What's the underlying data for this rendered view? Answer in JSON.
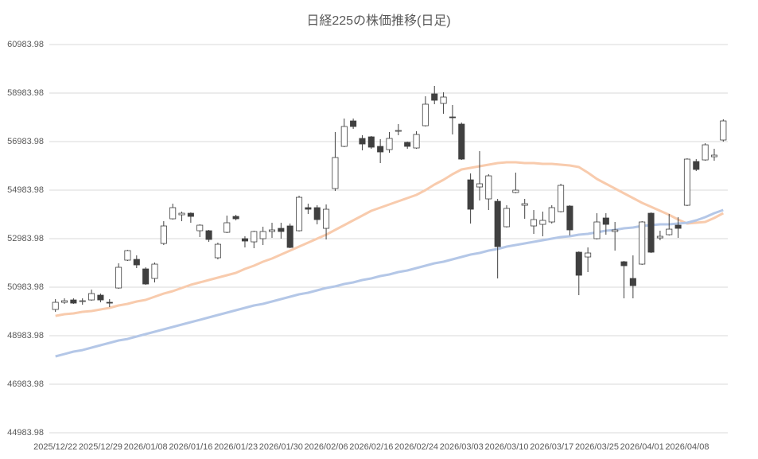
{
  "chart_data": {
    "type": "candlestick",
    "title": "日経225の株価推移(日足)",
    "categories": [
      "2025/12/22",
      null,
      null,
      null,
      null,
      "2025/12/29",
      null,
      null,
      null,
      null,
      "2026/01/08",
      null,
      null,
      null,
      null,
      "2026/01/16",
      null,
      null,
      null,
      null,
      "2026/01/23",
      null,
      null,
      null,
      null,
      "2026/01/30",
      null,
      null,
      null,
      null,
      "2026/02/06",
      null,
      null,
      null,
      null,
      "2026/02/16",
      null,
      null,
      null,
      null,
      "2026/02/24",
      null,
      null,
      null,
      null,
      "2026/03/03",
      null,
      null,
      null,
      null,
      "2026/03/10",
      null,
      null,
      null,
      null,
      "2026/03/17",
      null,
      null,
      null,
      null,
      "2026/03/25",
      null,
      null,
      null,
      null,
      "2026/04/01",
      null,
      null,
      null,
      null,
      "2026/04/08",
      null,
      null,
      null,
      null
    ],
    "open": [
      50065,
      50360,
      50458,
      50393,
      50458,
      50655,
      50360,
      50950,
      52098,
      52130,
      51737,
      51344,
      52786,
      53803,
      53967,
      54032,
      53311,
      53311,
      52196,
      53245,
      53901,
      52983,
      52852,
      52983,
      53278,
      53409,
      53508,
      53311,
      54262,
      54262,
      53409,
      55049,
      56787,
      57836,
      57115,
      57180,
      56787,
      56655,
      57410,
      56951,
      56721,
      57639,
      58951,
      58557,
      58000,
      57705,
      55409,
      55114,
      54623,
      54524,
      53475,
      54885,
      54360,
      53508,
      53573,
      53672,
      54098,
      54327,
      52426,
      52229,
      52983,
      53836,
      53278,
      52032,
      51344,
      51934,
      54032,
      53016,
      53147,
      53540,
      54360,
      56164,
      56229,
      56360,
      57049
    ],
    "high": [
      50491,
      50524,
      50524,
      50524,
      50884,
      50720,
      50491,
      51967,
      52524,
      52294,
      51803,
      51999,
      53704,
      54426,
      54098,
      54065,
      53573,
      53344,
      52819,
      53934,
      53967,
      53081,
      53311,
      53475,
      53639,
      53639,
      53606,
      54754,
      54426,
      54360,
      54393,
      57377,
      57934,
      57934,
      57246,
      57213,
      57082,
      57377,
      57705,
      56983,
      57410,
      58852,
      59279,
      59016,
      58492,
      57770,
      55672,
      56590,
      55639,
      54623,
      54360,
      55705,
      54623,
      54163,
      54098,
      54360,
      55246,
      54360,
      52458,
      52622,
      54032,
      54032,
      53672,
      52065,
      52294,
      53704,
      54065,
      53311,
      53999,
      53868,
      56295,
      56262,
      56918,
      56688,
      57902
    ],
    "low": [
      49966,
      50294,
      50294,
      50261,
      50425,
      50360,
      50163,
      50917,
      52065,
      51770,
      51081,
      51180,
      52721,
      53770,
      53704,
      53639,
      53049,
      52852,
      52130,
      53213,
      53737,
      52622,
      52590,
      52721,
      53016,
      52983,
      52590,
      53278,
      53999,
      53573,
      52950,
      54950,
      56754,
      57508,
      56623,
      56688,
      56098,
      56524,
      57246,
      56688,
      56688,
      57606,
      58525,
      58131,
      57278,
      56229,
      53606,
      54557,
      54163,
      51344,
      53442,
      54852,
      53803,
      53180,
      53081,
      53606,
      54065,
      53114,
      50655,
      51606,
      52950,
      53147,
      52491,
      50524,
      50524,
      51901,
      52393,
      52917,
      53114,
      53016,
      54327,
      55770,
      56196,
      56196,
      56983
    ],
    "close": [
      50360,
      50425,
      50327,
      50425,
      50720,
      50458,
      50327,
      51803,
      52491,
      51901,
      51114,
      51934,
      53508,
      54262,
      54032,
      53901,
      53540,
      52950,
      52753,
      53639,
      53803,
      52885,
      53278,
      53278,
      53344,
      53278,
      52622,
      54688,
      54196,
      53770,
      54196,
      56328,
      57606,
      57606,
      56885,
      56754,
      56557,
      57115,
      57442,
      56787,
      57278,
      58525,
      58688,
      58820,
      57967,
      56262,
      54196,
      55246,
      55573,
      52655,
      54229,
      54983,
      54426,
      53770,
      53737,
      54262,
      55180,
      53344,
      51475,
      52393,
      53672,
      53573,
      53344,
      51868,
      51048,
      53672,
      52426,
      53081,
      53376,
      53409,
      56262,
      55836,
      56852,
      56426,
      57836
    ],
    "up_color": "#ffffff",
    "down_color": "#404040",
    "edge_color": "#404040",
    "series": [
      {
        "color": "#f8cbad",
        "values": [
          49802,
          49868,
          49901,
          49966,
          49999,
          50065,
          50130,
          50229,
          50294,
          50393,
          50458,
          50589,
          50720,
          50819,
          50950,
          51081,
          51180,
          51278,
          51376,
          51475,
          51573,
          51737,
          51868,
          52032,
          52163,
          52327,
          52491,
          52655,
          52819,
          52983,
          53147,
          53344,
          53540,
          53737,
          53934,
          54131,
          54262,
          54393,
          54524,
          54655,
          54786,
          54983,
          55213,
          55409,
          55639,
          55836,
          55901,
          55967,
          56032,
          56098,
          56131,
          56131,
          56098,
          56098,
          56065,
          56065,
          56032,
          56000,
          55934,
          55705,
          55442,
          55246,
          55049,
          54852,
          54655,
          54459,
          54295,
          54131,
          53967,
          53770,
          53606,
          53639,
          53672,
          53836,
          54032
        ]
      },
      {
        "color": "#b4c7e7",
        "values": [
          48130,
          48228,
          48327,
          48392,
          48491,
          48589,
          48688,
          48786,
          48851,
          48950,
          49048,
          49147,
          49245,
          49343,
          49442,
          49540,
          49638,
          49737,
          49835,
          49934,
          50032,
          50130,
          50229,
          50294,
          50393,
          50491,
          50589,
          50688,
          50753,
          50852,
          50950,
          51016,
          51114,
          51180,
          51278,
          51344,
          51442,
          51507,
          51606,
          51671,
          51770,
          51868,
          51967,
          52032,
          52130,
          52229,
          52327,
          52393,
          52491,
          52557,
          52655,
          52721,
          52786,
          52852,
          52917,
          52983,
          53049,
          53081,
          53147,
          53180,
          53245,
          53311,
          53344,
          53409,
          53442,
          53508,
          53540,
          53573,
          53573,
          53606,
          53639,
          53737,
          53868,
          54032,
          54163
        ]
      }
    ],
    "ylim": [
      44983.98,
      60983.98
    ],
    "yticks": [
      44983.98,
      46983.98,
      48983.98,
      50983.98,
      52983.98,
      54983.98,
      56983.98,
      58983.98,
      60983.98
    ],
    "grid": true
  }
}
